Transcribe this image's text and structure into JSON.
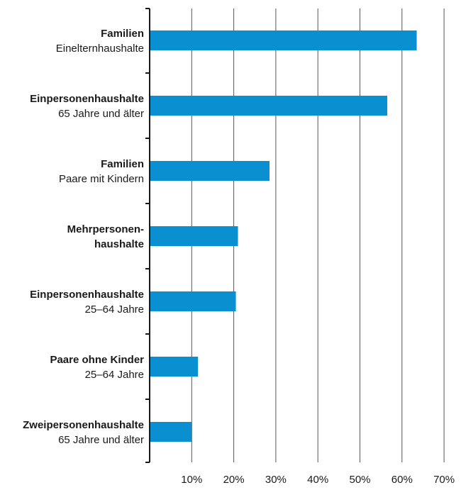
{
  "chart_data": {
    "type": "bar",
    "orientation": "horizontal",
    "categories": [
      {
        "line1": "Familien",
        "line2": "Einelternhaushalte",
        "line1_bold": true,
        "line2_bold": false
      },
      {
        "line1": "Einpersonenhaushalte",
        "line2": "65 Jahre und älter",
        "line1_bold": true,
        "line2_bold": false
      },
      {
        "line1": "Familien",
        "line2": "Paare mit Kindern",
        "line1_bold": true,
        "line2_bold": false
      },
      {
        "line1": "Mehrpersonen-",
        "line2": "haushalte",
        "line1_bold": true,
        "line2_bold": true
      },
      {
        "line1": "Einpersonenhaushalte",
        "line2": "25–64 Jahre",
        "line1_bold": true,
        "line2_bold": false
      },
      {
        "line1": "Paare ohne Kinder",
        "line2": "25–64 Jahre",
        "line1_bold": true,
        "line2_bold": false
      },
      {
        "line1": "Zweipersonenhaushalte",
        "line2": "65 Jahre und älter",
        "line1_bold": true,
        "line2_bold": false
      }
    ],
    "values": [
      63.5,
      56.5,
      28.5,
      21,
      20.5,
      11.5,
      10
    ],
    "xlim": [
      0,
      70
    ],
    "ticks": [
      10,
      20,
      30,
      40,
      50,
      60,
      70
    ],
    "tick_labels": [
      "10%",
      "20%",
      "30%",
      "40%",
      "50%",
      "60%",
      "70%"
    ],
    "grid": true,
    "bar_color": "#0a8fd0",
    "axis_color": "#1a1a1a",
    "grid_color": "#555555"
  }
}
